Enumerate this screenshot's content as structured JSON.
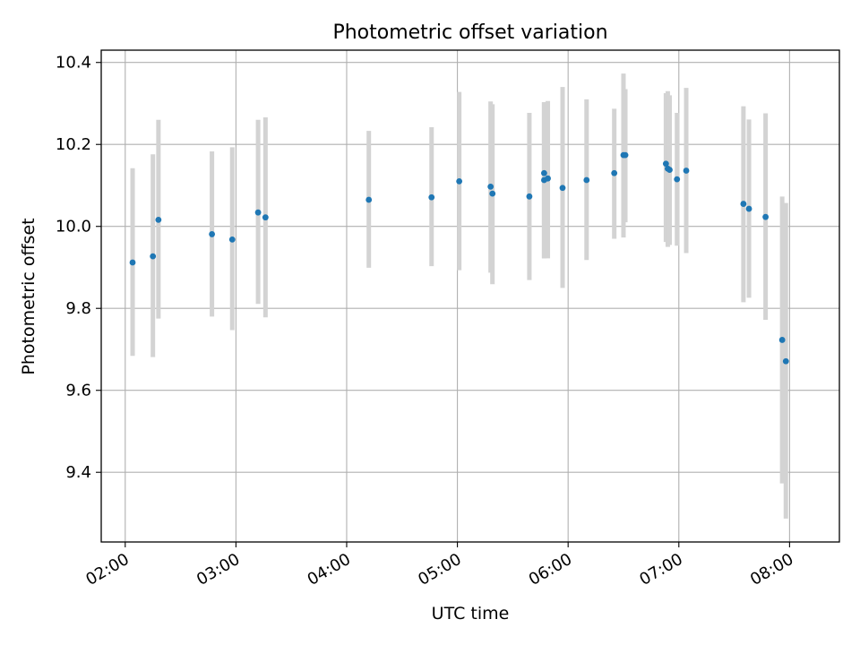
{
  "chart_data": {
    "type": "scatter",
    "title": "Photometric offset variation",
    "xlabel": "UTC time",
    "ylabel": "Photometric offset",
    "x_ticks": [
      "02:00",
      "03:00",
      "04:00",
      "05:00",
      "06:00",
      "07:00",
      "08:00"
    ],
    "y_ticks": [
      "9.4",
      "9.6",
      "9.8",
      "10.0",
      "10.2",
      "10.4"
    ],
    "xlim": [
      "01:47",
      "08:27"
    ],
    "ylim": [
      9.23,
      10.43
    ],
    "grid": true,
    "colors": {
      "point": "#1f77b4",
      "errorbar": "#d3d3d3",
      "grid": "#b0b0b0",
      "axis": "#000000"
    },
    "points": [
      {
        "x": "02:04",
        "y": 9.912,
        "ylo": 9.684,
        "yhi": 10.142
      },
      {
        "x": "02:15",
        "y": 9.927,
        "ylo": 9.681,
        "yhi": 10.176
      },
      {
        "x": "02:18",
        "y": 10.016,
        "ylo": 9.775,
        "yhi": 10.26
      },
      {
        "x": "02:47",
        "y": 9.981,
        "ylo": 9.78,
        "yhi": 10.183
      },
      {
        "x": "02:58",
        "y": 9.968,
        "ylo": 9.747,
        "yhi": 10.193
      },
      {
        "x": "03:12",
        "y": 10.034,
        "ylo": 9.811,
        "yhi": 10.26
      },
      {
        "x": "03:16",
        "y": 10.022,
        "ylo": 9.778,
        "yhi": 10.266
      },
      {
        "x": "04:12",
        "y": 10.065,
        "ylo": 9.899,
        "yhi": 10.233
      },
      {
        "x": "04:46",
        "y": 10.071,
        "ylo": 9.903,
        "yhi": 10.242
      },
      {
        "x": "05:01",
        "y": 10.11,
        "ylo": 9.893,
        "yhi": 10.328
      },
      {
        "x": "05:18",
        "y": 10.097,
        "ylo": 9.887,
        "yhi": 10.305
      },
      {
        "x": "05:19",
        "y": 10.08,
        "ylo": 9.859,
        "yhi": 10.298
      },
      {
        "x": "05:39",
        "y": 10.073,
        "ylo": 9.869,
        "yhi": 10.277
      },
      {
        "x": "05:47",
        "y": 10.13,
        "ylo": 9.922,
        "yhi": 10.303
      },
      {
        "x": "05:47",
        "y": 10.113,
        "ylo": 9.922,
        "yhi": 10.303
      },
      {
        "x": "05:49",
        "y": 10.117,
        "ylo": 9.922,
        "yhi": 10.306
      },
      {
        "x": "05:57",
        "y": 10.094,
        "ylo": 9.85,
        "yhi": 10.34
      },
      {
        "x": "06:10",
        "y": 10.113,
        "ylo": 9.918,
        "yhi": 10.31
      },
      {
        "x": "06:25",
        "y": 10.13,
        "ylo": 9.97,
        "yhi": 10.287
      },
      {
        "x": "06:30",
        "y": 10.174,
        "ylo": 9.973,
        "yhi": 10.373
      },
      {
        "x": "06:31",
        "y": 10.174,
        "ylo": 10.01,
        "yhi": 10.335
      },
      {
        "x": "06:53",
        "y": 10.153,
        "ylo": 9.962,
        "yhi": 10.325
      },
      {
        "x": "06:54",
        "y": 10.141,
        "ylo": 9.95,
        "yhi": 10.33
      },
      {
        "x": "06:55",
        "y": 10.138,
        "ylo": 9.955,
        "yhi": 10.32
      },
      {
        "x": "06:59",
        "y": 10.115,
        "ylo": 9.953,
        "yhi": 10.277
      },
      {
        "x": "07:04",
        "y": 10.136,
        "ylo": 9.935,
        "yhi": 10.338
      },
      {
        "x": "07:35",
        "y": 10.055,
        "ylo": 9.815,
        "yhi": 10.293
      },
      {
        "x": "07:38",
        "y": 10.043,
        "ylo": 9.826,
        "yhi": 10.261
      },
      {
        "x": "07:47",
        "y": 10.023,
        "ylo": 9.772,
        "yhi": 10.276
      },
      {
        "x": "07:56",
        "y": 9.723,
        "ylo": 9.373,
        "yhi": 10.073
      },
      {
        "x": "07:58",
        "y": 9.671,
        "ylo": 9.287,
        "yhi": 10.057
      }
    ]
  }
}
